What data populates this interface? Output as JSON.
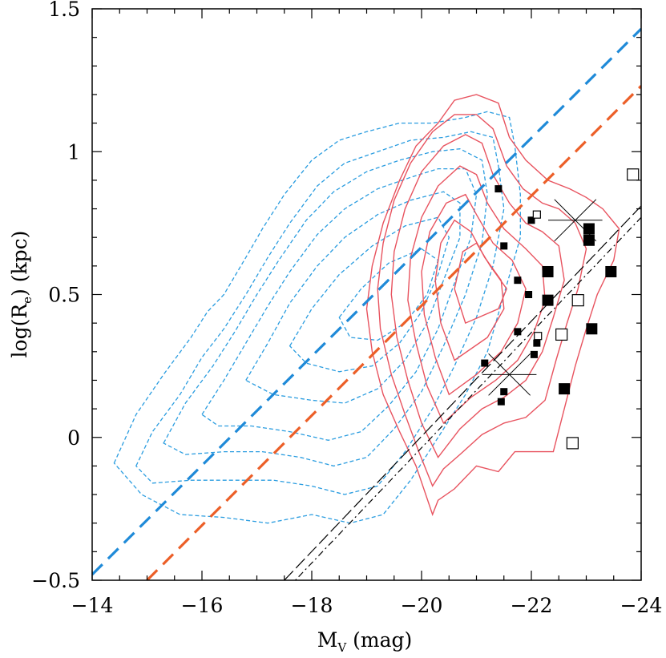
{
  "chart_data": {
    "type": "scatter",
    "title": "",
    "xlabel": {
      "main": "M",
      "sub": "V",
      "unit": " (mag)"
    },
    "ylabel": {
      "main": "log(R",
      "sub": "e",
      "unit": ") (kpc)"
    },
    "xlim": [
      -14,
      -24
    ],
    "ylim": [
      -0.5,
      1.5
    ],
    "x_ticks": [
      -14,
      -16,
      -18,
      -20,
      -22,
      -24
    ],
    "x_tick_labels": [
      "−14",
      "−16",
      "−18",
      "−20",
      "−22",
      "−24"
    ],
    "y_ticks": [
      -0.5,
      0,
      0.5,
      1,
      1.5
    ],
    "y_tick_labels": [
      "−0.5",
      "0",
      "0.5",
      "1",
      "1.5"
    ],
    "colors": {
      "blue": "#2b9de0",
      "orange": "#ee6a2e",
      "red": "#e8535f",
      "black": "#000000"
    },
    "fit_lines": [
      {
        "name": "blue-fit",
        "color": "#1f8ad8",
        "x": [
          -14,
          -24
        ],
        "y": [
          -0.48,
          1.43
        ]
      },
      {
        "name": "orange-fit",
        "color": "#ec5f28",
        "x": [
          -15,
          -24
        ],
        "y": [
          -0.5,
          1.23
        ]
      },
      {
        "name": "black-long-dash",
        "color": "#000000",
        "x": [
          -17.5,
          -24
        ],
        "y": [
          -0.5,
          0.81
        ]
      },
      {
        "name": "black-dot-dash",
        "color": "#000000",
        "x": [
          -17.7,
          -24
        ],
        "y": [
          -0.5,
          0.77
        ]
      }
    ],
    "contours_blue_dashed": [
      [
        [
          -14.4,
          -0.09
        ],
        [
          -14.8,
          0.08
        ],
        [
          -15.3,
          0.22
        ],
        [
          -15.8,
          0.35
        ],
        [
          -16.1,
          0.44
        ],
        [
          -16.4,
          0.5
        ],
        [
          -16.8,
          0.63
        ],
        [
          -17.1,
          0.73
        ],
        [
          -17.5,
          0.85
        ],
        [
          -18,
          0.97
        ],
        [
          -18.5,
          1.04
        ],
        [
          -19,
          1.07
        ],
        [
          -19.6,
          1.1
        ],
        [
          -20.2,
          1.1
        ],
        [
          -20.8,
          1.12
        ],
        [
          -21.2,
          1.14
        ],
        [
          -21.6,
          1.12
        ],
        [
          -21.7,
          1.02
        ],
        [
          -21.8,
          0.85
        ],
        [
          -21.8,
          0.7
        ],
        [
          -21.5,
          0.5
        ],
        [
          -21.2,
          0.3
        ],
        [
          -20.8,
          0.15
        ],
        [
          -20.3,
          0
        ],
        [
          -19.8,
          -0.15
        ],
        [
          -19.3,
          -0.27
        ],
        [
          -18.7,
          -0.3
        ],
        [
          -18,
          -0.27
        ],
        [
          -17.2,
          -0.3
        ],
        [
          -16.4,
          -0.28
        ],
        [
          -15.6,
          -0.27
        ],
        [
          -14.9,
          -0.2
        ],
        [
          -14.4,
          -0.09
        ]
      ],
      [
        [
          -14.8,
          -0.1
        ],
        [
          -15.1,
          0.02
        ],
        [
          -15.6,
          0.15
        ],
        [
          -16,
          0.28
        ],
        [
          -16.4,
          0.38
        ],
        [
          -16.8,
          0.5
        ],
        [
          -17.2,
          0.63
        ],
        [
          -17.6,
          0.75
        ],
        [
          -18.1,
          0.88
        ],
        [
          -18.6,
          0.96
        ],
        [
          -19.2,
          1
        ],
        [
          -19.8,
          1.04
        ],
        [
          -20.4,
          1.05
        ],
        [
          -20.9,
          1.07
        ],
        [
          -21.3,
          1.05
        ],
        [
          -21.4,
          0.95
        ],
        [
          -21.5,
          0.8
        ],
        [
          -21.3,
          0.6
        ],
        [
          -21,
          0.42
        ],
        [
          -20.6,
          0.25
        ],
        [
          -20.2,
          0.1
        ],
        [
          -19.7,
          -0.05
        ],
        [
          -19.2,
          -0.17
        ],
        [
          -18.6,
          -0.2
        ],
        [
          -18,
          -0.17
        ],
        [
          -17.3,
          -0.15
        ],
        [
          -16.5,
          -0.15
        ],
        [
          -15.8,
          -0.15
        ],
        [
          -15.1,
          -0.16
        ],
        [
          -14.8,
          -0.1
        ]
      ],
      [
        [
          -15.3,
          -0.02
        ],
        [
          -15.7,
          0.12
        ],
        [
          -16.2,
          0.25
        ],
        [
          -16.6,
          0.37
        ],
        [
          -17,
          0.5
        ],
        [
          -17.4,
          0.62
        ],
        [
          -17.9,
          0.76
        ],
        [
          -18.4,
          0.86
        ],
        [
          -19,
          0.93
        ],
        [
          -19.6,
          0.97
        ],
        [
          -20.2,
          1
        ],
        [
          -20.7,
          1.01
        ],
        [
          -21.1,
          0.97
        ],
        [
          -21.2,
          0.85
        ],
        [
          -21.1,
          0.68
        ],
        [
          -20.8,
          0.5
        ],
        [
          -20.4,
          0.32
        ],
        [
          -20,
          0.16
        ],
        [
          -19.5,
          0.03
        ],
        [
          -19,
          -0.07
        ],
        [
          -18.4,
          -0.1
        ],
        [
          -17.8,
          -0.07
        ],
        [
          -17.1,
          -0.05
        ],
        [
          -16.4,
          -0.05
        ],
        [
          -15.7,
          -0.06
        ],
        [
          -15.3,
          -0.02
        ]
      ],
      [
        [
          -16,
          0.08
        ],
        [
          -16.4,
          0.2
        ],
        [
          -16.8,
          0.33
        ],
        [
          -17.2,
          0.46
        ],
        [
          -17.6,
          0.58
        ],
        [
          -18.1,
          0.71
        ],
        [
          -18.6,
          0.8
        ],
        [
          -19.2,
          0.87
        ],
        [
          -19.8,
          0.91
        ],
        [
          -20.3,
          0.94
        ],
        [
          -20.8,
          0.94
        ],
        [
          -21,
          0.85
        ],
        [
          -20.9,
          0.7
        ],
        [
          -20.6,
          0.54
        ],
        [
          -20.3,
          0.38
        ],
        [
          -19.9,
          0.23
        ],
        [
          -19.4,
          0.11
        ],
        [
          -18.9,
          0.02
        ],
        [
          -18.3,
          -0.01
        ],
        [
          -17.6,
          0.02
        ],
        [
          -16.9,
          0.04
        ],
        [
          -16.3,
          0.04
        ],
        [
          -16,
          0.08
        ]
      ],
      [
        [
          -16.8,
          0.2
        ],
        [
          -17.2,
          0.33
        ],
        [
          -17.6,
          0.47
        ],
        [
          -18.1,
          0.6
        ],
        [
          -18.6,
          0.7
        ],
        [
          -19.2,
          0.78
        ],
        [
          -19.8,
          0.83
        ],
        [
          -20.4,
          0.86
        ],
        [
          -20.7,
          0.82
        ],
        [
          -20.7,
          0.7
        ],
        [
          -20.4,
          0.55
        ],
        [
          -20.1,
          0.4
        ],
        [
          -19.7,
          0.27
        ],
        [
          -19.2,
          0.17
        ],
        [
          -18.6,
          0.12
        ],
        [
          -18,
          0.13
        ],
        [
          -17.3,
          0.15
        ],
        [
          -16.8,
          0.2
        ]
      ],
      [
        [
          -17.6,
          0.32
        ],
        [
          -18,
          0.45
        ],
        [
          -18.5,
          0.57
        ],
        [
          -19.1,
          0.67
        ],
        [
          -19.7,
          0.74
        ],
        [
          -20.3,
          0.77
        ],
        [
          -20.5,
          0.7
        ],
        [
          -20.3,
          0.57
        ],
        [
          -20,
          0.44
        ],
        [
          -19.6,
          0.33
        ],
        [
          -19.1,
          0.25
        ],
        [
          -18.5,
          0.23
        ],
        [
          -17.9,
          0.26
        ],
        [
          -17.6,
          0.32
        ]
      ],
      [
        [
          -18.5,
          0.42
        ],
        [
          -18.9,
          0.52
        ],
        [
          -19.4,
          0.61
        ],
        [
          -20,
          0.66
        ],
        [
          -20.3,
          0.62
        ],
        [
          -20.1,
          0.5
        ],
        [
          -19.7,
          0.4
        ],
        [
          -19.2,
          0.34
        ],
        [
          -18.7,
          0.35
        ],
        [
          -18.5,
          0.42
        ]
      ]
    ],
    "contours_red_solid": [
      [
        [
          -20.2,
          -0.27
        ],
        [
          -19.9,
          -0.1
        ],
        [
          -19.6,
          0.02
        ],
        [
          -19.3,
          0.15
        ],
        [
          -19.1,
          0.3
        ],
        [
          -19,
          0.45
        ],
        [
          -19.1,
          0.6
        ],
        [
          -19.3,
          0.75
        ],
        [
          -19.6,
          0.9
        ],
        [
          -19.9,
          1.02
        ],
        [
          -20.3,
          1.1
        ],
        [
          -20.6,
          1.18
        ],
        [
          -21,
          1.2
        ],
        [
          -21.4,
          1.17
        ],
        [
          -21.6,
          1.05
        ],
        [
          -21.9,
          0.97
        ],
        [
          -22.3,
          0.9
        ],
        [
          -22.7,
          0.87
        ],
        [
          -23,
          0.84
        ],
        [
          -23.3,
          0.8
        ],
        [
          -23.6,
          0.73
        ],
        [
          -23.5,
          0.62
        ],
        [
          -23.2,
          0.5
        ],
        [
          -23,
          0.38
        ],
        [
          -22.8,
          0.25
        ],
        [
          -22.6,
          0.1
        ],
        [
          -22.4,
          -0.05
        ],
        [
          -21.7,
          -0.05
        ],
        [
          -21.4,
          -0.12
        ],
        [
          -21,
          -0.1
        ],
        [
          -20.6,
          -0.18
        ],
        [
          -20.3,
          -0.22
        ],
        [
          -20.2,
          -0.27
        ]
      ],
      [
        [
          -20.2,
          -0.17
        ],
        [
          -19.95,
          -0.05
        ],
        [
          -19.7,
          0.08
        ],
        [
          -19.45,
          0.22
        ],
        [
          -19.25,
          0.38
        ],
        [
          -19.2,
          0.52
        ],
        [
          -19.3,
          0.68
        ],
        [
          -19.5,
          0.83
        ],
        [
          -19.8,
          0.96
        ],
        [
          -20.2,
          1.07
        ],
        [
          -20.6,
          1.13
        ],
        [
          -21,
          1.13
        ],
        [
          -21.3,
          1.08
        ],
        [
          -21.55,
          0.95
        ],
        [
          -21.85,
          0.87
        ],
        [
          -22.2,
          0.82
        ],
        [
          -22.5,
          0.8
        ],
        [
          -22.8,
          0.75
        ],
        [
          -23,
          0.66
        ],
        [
          -22.85,
          0.52
        ],
        [
          -22.65,
          0.4
        ],
        [
          -22.45,
          0.27
        ],
        [
          -22.25,
          0.13
        ],
        [
          -21.9,
          0.07
        ],
        [
          -21.5,
          0.05
        ],
        [
          -21.1,
          0.01
        ],
        [
          -20.7,
          -0.06
        ],
        [
          -20.4,
          -0.11
        ],
        [
          -20.2,
          -0.17
        ]
      ],
      [
        [
          -20.3,
          -0.07
        ],
        [
          -20,
          0.05
        ],
        [
          -19.75,
          0.2
        ],
        [
          -19.55,
          0.35
        ],
        [
          -19.45,
          0.5
        ],
        [
          -19.5,
          0.65
        ],
        [
          -19.7,
          0.8
        ],
        [
          -20,
          0.93
        ],
        [
          -20.4,
          1.02
        ],
        [
          -20.8,
          1.06
        ],
        [
          -21.1,
          1.03
        ],
        [
          -21.3,
          0.92
        ],
        [
          -21.6,
          0.82
        ],
        [
          -21.9,
          0.75
        ],
        [
          -22.2,
          0.72
        ],
        [
          -22.5,
          0.67
        ],
        [
          -22.6,
          0.55
        ],
        [
          -22.4,
          0.42
        ],
        [
          -22.2,
          0.3
        ],
        [
          -21.9,
          0.2
        ],
        [
          -21.5,
          0.14
        ],
        [
          -21.1,
          0.1
        ],
        [
          -20.7,
          0.03
        ],
        [
          -20.3,
          -0.07
        ]
      ],
      [
        [
          -20.4,
          0.05
        ],
        [
          -20.1,
          0.18
        ],
        [
          -19.9,
          0.33
        ],
        [
          -19.75,
          0.48
        ],
        [
          -19.8,
          0.63
        ],
        [
          -20,
          0.77
        ],
        [
          -20.3,
          0.88
        ],
        [
          -20.7,
          0.95
        ],
        [
          -21,
          0.92
        ],
        [
          -21.2,
          0.82
        ],
        [
          -21.5,
          0.73
        ],
        [
          -21.9,
          0.66
        ],
        [
          -22.2,
          0.6
        ],
        [
          -22.25,
          0.48
        ],
        [
          -22.05,
          0.37
        ],
        [
          -21.75,
          0.27
        ],
        [
          -21.35,
          0.2
        ],
        [
          -20.9,
          0.14
        ],
        [
          -20.4,
          0.05
        ]
      ],
      [
        [
          -20.5,
          0.15
        ],
        [
          -20.25,
          0.28
        ],
        [
          -20.05,
          0.43
        ],
        [
          -20,
          0.58
        ],
        [
          -20.15,
          0.72
        ],
        [
          -20.45,
          0.82
        ],
        [
          -20.8,
          0.85
        ],
        [
          -21,
          0.78
        ],
        [
          -21.3,
          0.68
        ],
        [
          -21.65,
          0.62
        ],
        [
          -21.9,
          0.52
        ],
        [
          -21.75,
          0.4
        ],
        [
          -21.45,
          0.3
        ],
        [
          -21,
          0.22
        ],
        [
          -20.5,
          0.15
        ]
      ],
      [
        [
          -20.6,
          0.27
        ],
        [
          -20.35,
          0.4
        ],
        [
          -20.25,
          0.55
        ],
        [
          -20.35,
          0.68
        ],
        [
          -20.6,
          0.76
        ],
        [
          -20.9,
          0.72
        ],
        [
          -21.15,
          0.63
        ],
        [
          -21.45,
          0.55
        ],
        [
          -21.5,
          0.45
        ],
        [
          -21.2,
          0.35
        ],
        [
          -20.6,
          0.27
        ]
      ],
      [
        [
          -20.8,
          0.4
        ],
        [
          -20.6,
          0.52
        ],
        [
          -20.75,
          0.65
        ],
        [
          -21,
          0.68
        ],
        [
          -21.25,
          0.6
        ],
        [
          -21.55,
          0.52
        ],
        [
          -21.4,
          0.45
        ],
        [
          -20.8,
          0.4
        ]
      ]
    ],
    "filled_squares": [
      {
        "x": -21.4,
        "y": 0.87,
        "size": "s"
      },
      {
        "x": -22.0,
        "y": 0.76,
        "size": "s"
      },
      {
        "x": -21.5,
        "y": 0.67,
        "size": "s"
      },
      {
        "x": -21.75,
        "y": 0.55,
        "size": "s"
      },
      {
        "x": -21.95,
        "y": 0.5,
        "size": "s"
      },
      {
        "x": -21.75,
        "y": 0.37,
        "size": "s"
      },
      {
        "x": -22.1,
        "y": 0.33,
        "size": "s"
      },
      {
        "x": -22.05,
        "y": 0.29,
        "size": "s"
      },
      {
        "x": -21.15,
        "y": 0.26,
        "size": "s"
      },
      {
        "x": -21.5,
        "y": 0.16,
        "size": "s"
      },
      {
        "x": -21.45,
        "y": 0.125,
        "size": "s"
      },
      {
        "x": -23.05,
        "y": 0.73,
        "size": "l"
      },
      {
        "x": -23.05,
        "y": 0.69,
        "size": "l"
      },
      {
        "x": -22.3,
        "y": 0.58,
        "size": "l"
      },
      {
        "x": -23.45,
        "y": 0.58,
        "size": "l"
      },
      {
        "x": -22.3,
        "y": 0.48,
        "size": "l"
      },
      {
        "x": -23.1,
        "y": 0.38,
        "size": "l"
      },
      {
        "x": -22.6,
        "y": 0.17,
        "size": "l"
      }
    ],
    "open_squares": [
      {
        "x": -22.1,
        "y": 0.78,
        "size": "s"
      },
      {
        "x": -22.12,
        "y": 0.355,
        "size": "s"
      },
      {
        "x": -23.85,
        "y": 0.92,
        "size": "l"
      },
      {
        "x": -22.85,
        "y": 0.48,
        "size": "l"
      },
      {
        "x": -22.55,
        "y": 0.36,
        "size": "l"
      },
      {
        "x": -22.75,
        "y": -0.02,
        "size": "l"
      }
    ],
    "crosses": [
      {
        "x": -22.8,
        "y": 0.76
      },
      {
        "x": -21.6,
        "y": 0.22
      }
    ]
  }
}
